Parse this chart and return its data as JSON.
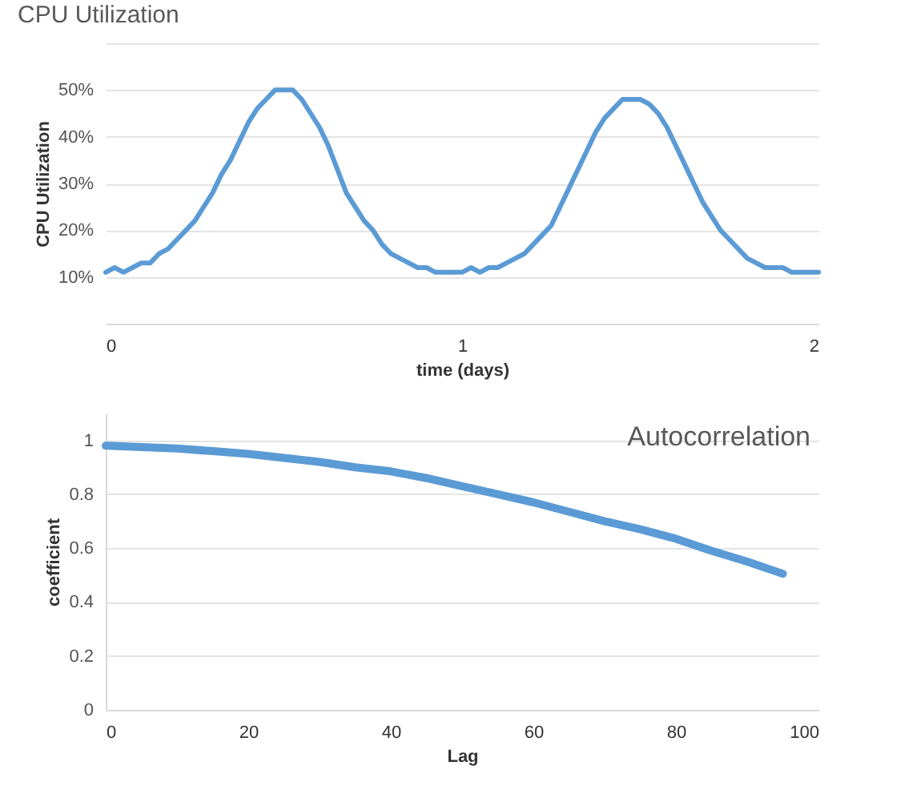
{
  "chart_data": [
    {
      "type": "line",
      "title": "CPU Utilization",
      "xlabel": "time (days)",
      "ylabel": "CPU Utilization",
      "x": [
        0,
        0.025,
        0.05,
        0.075,
        0.1,
        0.125,
        0.15,
        0.175,
        0.2,
        0.225,
        0.25,
        0.275,
        0.3,
        0.325,
        0.35,
        0.375,
        0.4,
        0.425,
        0.45,
        0.475,
        0.5,
        0.525,
        0.55,
        0.575,
        0.6,
        0.625,
        0.65,
        0.675,
        0.7,
        0.725,
        0.75,
        0.775,
        0.8,
        0.825,
        0.85,
        0.875,
        0.9,
        0.925,
        0.95,
        0.975,
        1,
        1.025,
        1.05,
        1.075,
        1.1,
        1.125,
        1.15,
        1.175,
        1.2,
        1.225,
        1.25,
        1.275,
        1.3,
        1.325,
        1.35,
        1.375,
        1.4,
        1.425,
        1.45,
        1.475,
        1.5,
        1.525,
        1.55,
        1.575,
        1.6,
        1.625,
        1.65,
        1.675,
        1.7,
        1.725,
        1.75,
        1.775,
        1.8,
        1.825,
        1.85,
        1.875,
        1.9,
        1.925,
        1.95,
        1.975,
        2
      ],
      "series": [
        {
          "color": "#5b9bd5",
          "values": [
            11,
            12,
            11,
            12,
            13,
            13,
            15,
            16,
            18,
            20,
            22,
            25,
            28,
            32,
            35,
            39,
            43,
            46,
            48,
            50,
            50,
            50,
            48,
            45,
            42,
            38,
            33,
            28,
            25,
            22,
            20,
            17,
            15,
            14,
            13,
            12,
            12,
            11,
            11,
            11,
            11,
            12,
            11,
            12,
            12,
            13,
            14,
            15,
            17,
            19,
            21,
            25,
            29,
            33,
            37,
            41,
            44,
            46,
            48,
            48,
            48,
            47,
            45,
            42,
            38,
            34,
            30,
            26,
            23,
            20,
            18,
            16,
            14,
            13,
            12,
            12,
            12,
            11,
            11,
            11,
            11
          ]
        }
      ],
      "xlim": [
        0,
        2
      ],
      "xticks": [
        0,
        1,
        2
      ],
      "ylim": [
        0,
        60
      ],
      "yticks": [
        {
          "value": 0,
          "label": null
        },
        {
          "value": 10,
          "label": "10%"
        },
        {
          "value": 20,
          "label": "20%"
        },
        {
          "value": 30,
          "label": "30%"
        },
        {
          "value": 40,
          "label": "40%"
        },
        {
          "value": 50,
          "label": "50%"
        },
        {
          "value": 60,
          "label": null
        }
      ],
      "grid": "y"
    },
    {
      "type": "line",
      "title": "Autocorrelation",
      "xlabel": "Lag",
      "ylabel": "coefficient",
      "x": [
        0,
        5,
        10,
        15,
        20,
        25,
        30,
        35,
        40,
        45,
        50,
        55,
        60,
        65,
        70,
        75,
        80,
        85,
        90,
        95
      ],
      "series": [
        {
          "color": "#5b9bd5",
          "values": [
            0.98,
            0.975,
            0.97,
            0.96,
            0.95,
            0.935,
            0.92,
            0.9,
            0.885,
            0.86,
            0.83,
            0.8,
            0.77,
            0.735,
            0.7,
            0.67,
            0.635,
            0.59,
            0.55,
            0.505
          ]
        }
      ],
      "xlim": [
        0,
        100
      ],
      "xticks": [
        0,
        20,
        40,
        60,
        80,
        100
      ],
      "ylim": [
        0,
        1.1
      ],
      "yticks": [
        0,
        0.2,
        0.4,
        0.6,
        0.8,
        1
      ],
      "grid": "y"
    }
  ]
}
